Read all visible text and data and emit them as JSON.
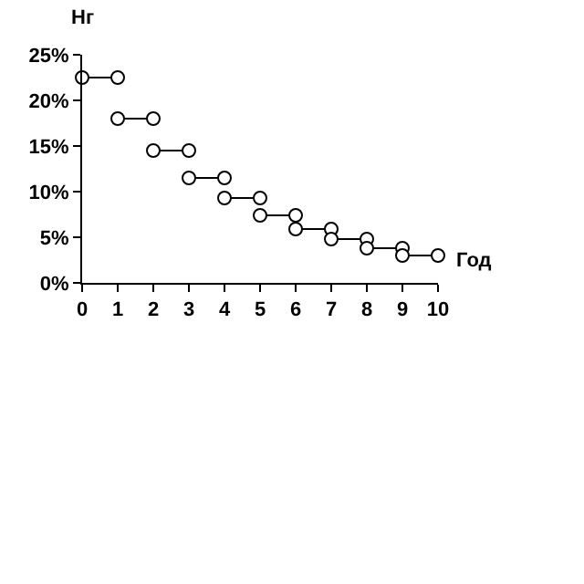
{
  "chart_data": {
    "type": "line",
    "xlabel": "Год",
    "ylabel": "Нг",
    "marker": "circle",
    "xlim": [
      0,
      10
    ],
    "xticks": [
      0,
      1,
      2,
      3,
      4,
      5,
      6,
      7,
      8,
      9,
      10
    ],
    "ylim": [
      0,
      25
    ],
    "yticks": [
      {
        "value": 0,
        "label": "0%"
      },
      {
        "value": 5,
        "label": "5%"
      },
      {
        "value": 10,
        "label": "10%"
      },
      {
        "value": 15,
        "label": "15%"
      },
      {
        "value": 20,
        "label": "20%"
      },
      {
        "value": 25,
        "label": "25%"
      }
    ],
    "series": [
      {
        "color": "#000000",
        "x": [
          0,
          1
        ],
        "values": [
          22.5,
          22.5
        ]
      },
      {
        "color": "#000000",
        "x": [
          1,
          2
        ],
        "values": [
          18,
          18
        ]
      },
      {
        "color": "#000000",
        "x": [
          2,
          3
        ],
        "values": [
          14.5,
          14.5
        ]
      },
      {
        "color": "#000000",
        "x": [
          3,
          4
        ],
        "values": [
          11.5,
          11.5
        ]
      },
      {
        "color": "#000000",
        "x": [
          4,
          5
        ],
        "values": [
          9.3,
          9.3
        ]
      },
      {
        "color": "#000000",
        "x": [
          5,
          6
        ],
        "values": [
          7.4,
          7.4
        ]
      },
      {
        "color": "#000000",
        "x": [
          6,
          7
        ],
        "values": [
          5.9,
          5.9
        ]
      },
      {
        "color": "#000000",
        "x": [
          7,
          8
        ],
        "values": [
          4.8,
          4.8
        ]
      },
      {
        "color": "#000000",
        "x": [
          8,
          9
        ],
        "values": [
          3.8,
          3.8
        ]
      },
      {
        "color": "#000000",
        "x": [
          9,
          10
        ],
        "values": [
          3,
          3
        ]
      }
    ]
  }
}
